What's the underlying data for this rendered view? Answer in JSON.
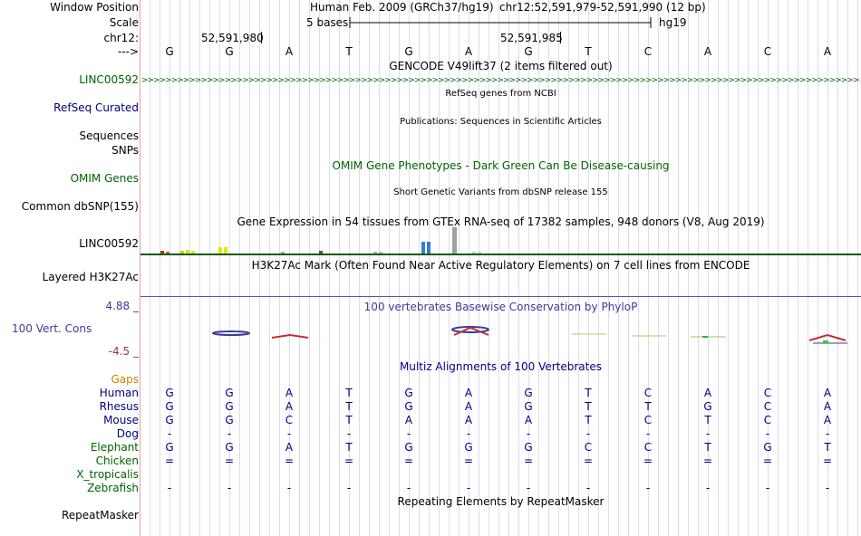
{
  "header": {
    "window_position_label": "Window Position",
    "scale_label": "Scale",
    "chr_label": "chr12:",
    "strand_label": "--->",
    "title": "Human Feb. 2009 (GRCh37/hg19)",
    "position": "chr12:52,591,979-52,591,990 (12 bp)",
    "scale_text": "5 bases",
    "assembly": "hg19",
    "coord_left": "52,591,980",
    "coord_right": "52,591,985"
  },
  "bases": [
    "G",
    "G",
    "A",
    "T",
    "G",
    "A",
    "G",
    "T",
    "C",
    "A",
    "C",
    "A"
  ],
  "tracks": {
    "gencode_title": "GENCODE V49lift37 (2 items filtered out)",
    "gencode_label": "LINC00592",
    "refseq_title": "RefSeq genes from NCBI",
    "refseq_label": "RefSeq Curated",
    "pubs_title": "Publications: Sequences in Scientific Articles",
    "sequences_label": "Sequences",
    "snps_label": "SNPs",
    "omim_title": "OMIM Gene Phenotypes - Dark Green Can Be Disease-causing",
    "omim_label": "OMIM Genes",
    "dbsnp_title": "Short Genetic Variants from dbSNP release 155",
    "dbsnp_label": "Common dbSNP(155)",
    "gtex_title": "Gene Expression in 54 tissues from GTEx RNA-seq of 17382 samples, 948 donors (V8, Aug 2019)",
    "gtex_label": "LINC00592",
    "h3k27ac_title": "H3K27Ac Mark (Often Found Near Active Regulatory Elements) on 7 cell lines from ENCODE",
    "h3k27ac_label": "Layered H3K27Ac",
    "phylop_title": "100 vertebrates Basewise Conservation by PhyloP",
    "phylop_label": "100 Vert. Cons",
    "phylop_max": "4.88 _",
    "phylop_min": "-4.5 _",
    "multiz_title": "Multiz Alignments of 100 Vertebrates",
    "gaps_label": "Gaps",
    "repeat_title": "Repeating Elements by RepeatMasker",
    "repeat_label": "RepeatMasker"
  },
  "species": [
    {
      "name": "Human",
      "seq": [
        "G",
        "G",
        "A",
        "T",
        "G",
        "A",
        "G",
        "T",
        "C",
        "A",
        "C",
        "A"
      ],
      "fade": [
        0,
        0,
        0,
        0,
        0,
        0,
        0,
        0,
        0,
        0,
        0,
        0
      ]
    },
    {
      "name": "Rhesus",
      "seq": [
        "G",
        "G",
        "A",
        "T",
        "G",
        "A",
        "G",
        "T",
        "T",
        "G",
        "C",
        "A"
      ],
      "fade": [
        0,
        0,
        0,
        0,
        0,
        0,
        0,
        0,
        1,
        1,
        0,
        0
      ]
    },
    {
      "name": "Mouse",
      "seq": [
        "G",
        "G",
        "C",
        "T",
        "A",
        "A",
        "A",
        "T",
        "C",
        "T",
        "C",
        "A"
      ],
      "fade": [
        0,
        0,
        1,
        0,
        1,
        0,
        1,
        0,
        0,
        1,
        0,
        0
      ]
    },
    {
      "name": "Dog",
      "seq": [
        "-",
        "-",
        "-",
        "-",
        "-",
        "-",
        "-",
        "-",
        "-",
        "-",
        "-",
        "-"
      ],
      "fade": [
        2,
        2,
        2,
        2,
        2,
        2,
        2,
        2,
        2,
        2,
        2,
        2
      ]
    },
    {
      "name": "Elephant",
      "seq": [
        "G",
        "G",
        "A",
        "T",
        "G",
        "G",
        "G",
        "C",
        "C",
        "T",
        "G",
        "T"
      ],
      "fade": [
        0,
        0,
        0,
        0,
        0,
        1,
        0,
        1,
        0,
        1,
        1,
        1
      ]
    },
    {
      "name": "Chicken",
      "seq": [
        "=",
        "=",
        "=",
        "=",
        "=",
        "=",
        "=",
        "=",
        "=",
        "=",
        "=",
        "="
      ],
      "fade": [
        1,
        1,
        1,
        1,
        1,
        1,
        1,
        1,
        1,
        1,
        1,
        1
      ]
    },
    {
      "name": "X_tropicalis",
      "seq": [
        "",
        "",
        "",
        "",
        "",
        "",
        "",
        "",
        "",
        "",
        "",
        ""
      ],
      "fade": [
        0,
        0,
        0,
        0,
        0,
        0,
        0,
        0,
        0,
        0,
        0,
        0
      ]
    },
    {
      "name": "Zebrafish",
      "seq": [
        "-",
        "-",
        "-",
        "-",
        "-",
        "-",
        "-",
        "-",
        "-",
        "-",
        "-",
        "-"
      ],
      "fade": [
        2,
        2,
        2,
        2,
        2,
        2,
        2,
        2,
        2,
        2,
        2,
        2
      ]
    }
  ],
  "colors": {
    "navy": "#000080",
    "green": "#006400",
    "omim_green": "#006400",
    "phylop_blue": "#3c3c96",
    "phylop_red": "#963c3c",
    "gaps_orange": "#d08000",
    "h3k27ac_bar": "#0a5a0a",
    "h3k27ac_line": "#4d5aa8"
  }
}
